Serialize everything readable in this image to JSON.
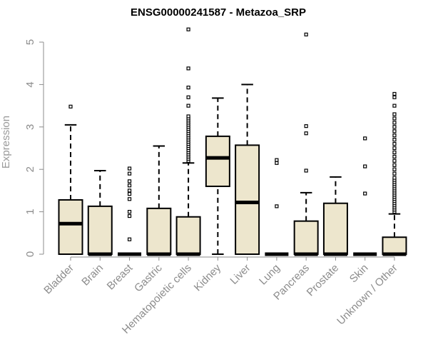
{
  "chart_data": {
    "type": "boxplot",
    "title": "ENSG00000241587 - Metazoa_SRP",
    "xlabel": "",
    "ylabel": "Expression",
    "ylim": [
      0,
      5.3
    ],
    "yticks": [
      0,
      1,
      2,
      3,
      4,
      5
    ],
    "grid": false,
    "legend": "none",
    "colors": {
      "box_fill": "#ede6cd",
      "box_stroke": "#000000",
      "axis": "#8c8c8c",
      "title": "#000000"
    },
    "categories": [
      "Bladder",
      "Brain",
      "Breast",
      "Gastric",
      "Hematopoietic cells",
      "Kidney",
      "Liver",
      "Lung",
      "Pancreas",
      "Prostate",
      "Skin",
      "Unknown / Other"
    ],
    "boxes": [
      {
        "category": "Bladder",
        "lower_whisker": 0,
        "q1": 0,
        "median": 0.72,
        "q3": 1.28,
        "upper_whisker": 3.05,
        "outliers": [
          3.48
        ]
      },
      {
        "category": "Brain",
        "lower_whisker": 0,
        "q1": 0,
        "median": 0,
        "q3": 1.13,
        "upper_whisker": 1.97,
        "outliers": []
      },
      {
        "category": "Breast",
        "lower_whisker": 0,
        "q1": 0,
        "median": 0,
        "q3": 0,
        "upper_whisker": 0,
        "outliers": [
          0.35,
          0.9,
          1.0,
          1.3,
          1.42,
          1.5,
          1.62,
          1.72,
          1.9,
          2.02
        ]
      },
      {
        "category": "Gastric",
        "lower_whisker": 0,
        "q1": 0,
        "median": 0,
        "q3": 1.08,
        "upper_whisker": 2.55,
        "outliers": []
      },
      {
        "category": "Hematopoietic cells",
        "lower_whisker": 0,
        "q1": 0,
        "median": 0,
        "q3": 0.88,
        "upper_whisker": 2.15,
        "outliers": [
          2.2,
          2.25,
          2.3,
          2.35,
          2.4,
          2.45,
          2.5,
          2.55,
          2.6,
          2.65,
          2.7,
          2.75,
          2.8,
          2.85,
          2.9,
          2.95,
          3.0,
          3.05,
          3.1,
          3.15,
          3.2,
          3.25,
          3.5,
          3.7,
          3.93,
          4.38,
          5.3
        ]
      },
      {
        "category": "Kidney",
        "lower_whisker": 0,
        "q1": 1.6,
        "median": 2.27,
        "q3": 2.78,
        "upper_whisker": 3.68,
        "outliers": []
      },
      {
        "category": "Liver",
        "lower_whisker": 0,
        "q1": 0,
        "median": 1.22,
        "q3": 2.57,
        "upper_whisker": 4.0,
        "outliers": []
      },
      {
        "category": "Lung",
        "lower_whisker": 0,
        "q1": 0,
        "median": 0,
        "q3": 0,
        "upper_whisker": 0,
        "outliers": [
          1.13,
          2.15,
          2.22
        ]
      },
      {
        "category": "Pancreas",
        "lower_whisker": 0,
        "q1": 0,
        "median": 0,
        "q3": 0.78,
        "upper_whisker": 1.45,
        "outliers": [
          1.97,
          2.85,
          3.02,
          5.18
        ]
      },
      {
        "category": "Prostate",
        "lower_whisker": 0,
        "q1": 0,
        "median": 0,
        "q3": 1.2,
        "upper_whisker": 1.82,
        "outliers": []
      },
      {
        "category": "Skin",
        "lower_whisker": 0,
        "q1": 0,
        "median": 0,
        "q3": 0,
        "upper_whisker": 0,
        "outliers": [
          1.43,
          2.07,
          2.73
        ]
      },
      {
        "category": "Unknown / Other",
        "lower_whisker": 0,
        "q1": 0,
        "median": 0,
        "q3": 0.4,
        "upper_whisker": 0.95,
        "outliers": [
          1.0,
          1.05,
          1.1,
          1.15,
          1.2,
          1.25,
          1.3,
          1.35,
          1.4,
          1.45,
          1.5,
          1.55,
          1.6,
          1.65,
          1.7,
          1.75,
          1.8,
          1.9,
          2.0,
          2.1,
          2.2,
          2.3,
          2.4,
          2.5,
          2.6,
          2.7,
          2.8,
          2.9,
          3.0,
          3.1,
          3.2,
          3.3,
          3.5,
          3.7,
          3.78
        ]
      }
    ]
  }
}
